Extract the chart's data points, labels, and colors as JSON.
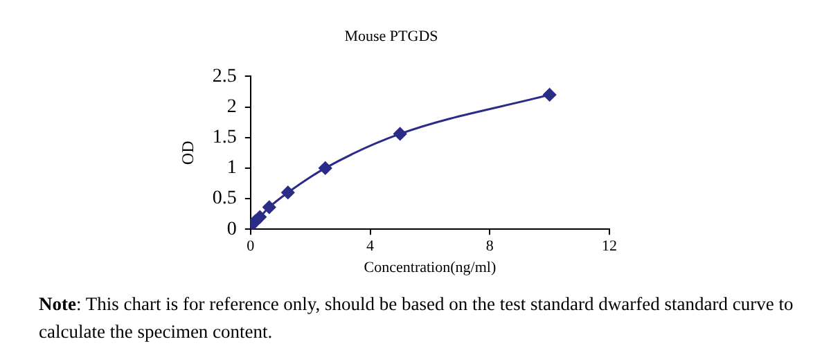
{
  "chart_data": {
    "type": "line",
    "title": "Mouse PTGDS",
    "xlabel": "Concentration(ng/ml)",
    "ylabel": "OD",
    "x": [
      0,
      0.078,
      0.156,
      0.312,
      0.625,
      1.25,
      2.5,
      5,
      10
    ],
    "series": [
      {
        "color": "#2b2b88",
        "values": [
          0.05,
          0.09,
          0.13,
          0.2,
          0.36,
          0.6,
          1.0,
          1.56,
          2.2
        ]
      }
    ],
    "xlim": [
      0,
      12
    ],
    "xticks": [
      0,
      4,
      8,
      12
    ],
    "ylim": [
      0,
      2.5
    ],
    "yticks": [
      0,
      0.5,
      1,
      1.5,
      2,
      2.5
    ],
    "grid": false,
    "legend": false,
    "marker": "diamond",
    "line_style": "solid",
    "annotations": [
      "Note: This chart is for reference only, should be based on the test standard dwarfed standard curve to calculate the specimen content."
    ]
  }
}
